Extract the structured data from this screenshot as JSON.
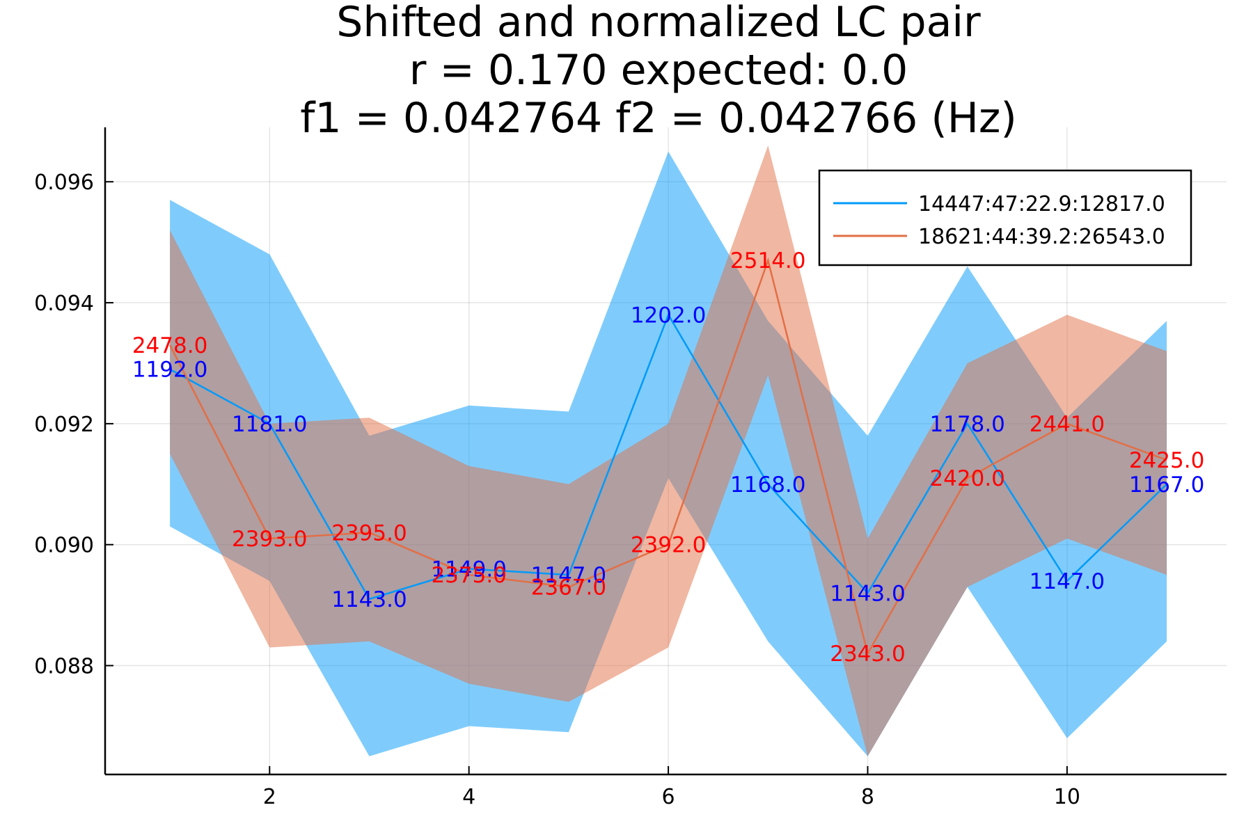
{
  "chart_data": {
    "type": "line",
    "title": [
      "Shifted and normalized LC pair",
      "r = 0.170 expected: 0.0",
      "f1 = 0.042764    f2 = 0.042766 (Hz)"
    ],
    "xlabel": "",
    "ylabel": "",
    "xlim": [
      0.35,
      11.6
    ],
    "ylim": [
      0.0862,
      0.0969
    ],
    "xticks": [
      2,
      4,
      6,
      8,
      10
    ],
    "yticks": [
      0.088,
      0.09,
      0.092,
      0.094,
      0.096
    ],
    "ytick_labels": [
      "0.088",
      "0.090",
      "0.092",
      "0.094",
      "0.096"
    ],
    "grid": true,
    "legend_position": "top-right",
    "x": [
      1,
      2,
      3,
      4,
      5,
      6,
      7,
      8,
      9,
      10,
      11
    ],
    "series": [
      {
        "name": "14447:47:22.9:12817.0",
        "color": "#009AFA",
        "band_color": "#009AFA",
        "label_color": "#0000FF",
        "values": [
          0.0929,
          0.092,
          0.0891,
          0.0896,
          0.0895,
          0.0938,
          0.091,
          0.0892,
          0.092,
          0.0894,
          0.091
        ],
        "band_upper": [
          0.0957,
          0.0948,
          0.0918,
          0.0923,
          0.0922,
          0.0965,
          0.0937,
          0.0918,
          0.0946,
          0.0921,
          0.0937
        ],
        "band_lower": [
          0.0903,
          0.0894,
          0.0865,
          0.087,
          0.0869,
          0.0911,
          0.0884,
          0.0865,
          0.0893,
          0.0868,
          0.0884
        ],
        "point_labels": [
          "1192.0",
          "1181.0",
          "1143.0",
          "1149.0",
          "1147.0",
          "1202.0",
          "1168.0",
          "1143.0",
          "1178.0",
          "1147.0",
          "1167.0"
        ]
      },
      {
        "name": "18621:44:39.2:26543.0",
        "color": "#E26F46",
        "band_color": "#E26F46",
        "label_color": "#FF0000",
        "values": [
          0.0933,
          0.0901,
          0.0902,
          0.0895,
          0.0893,
          0.09,
          0.0947,
          0.0882,
          0.0911,
          0.092,
          0.0914
        ],
        "band_upper": [
          0.0952,
          0.092,
          0.0921,
          0.0913,
          0.091,
          0.092,
          0.0966,
          0.0901,
          0.093,
          0.0938,
          0.0932
        ],
        "band_lower": [
          0.0915,
          0.0883,
          0.0884,
          0.0877,
          0.0874,
          0.0883,
          0.0928,
          0.0865,
          0.0893,
          0.0901,
          0.0895
        ],
        "point_labels": [
          "2478.0",
          "2393.0",
          "2395.0",
          "2375.0",
          "2367.0",
          "2392.0",
          "2514.0",
          "2343.0",
          "2420.0",
          "2441.0",
          "2425.0"
        ]
      }
    ]
  }
}
